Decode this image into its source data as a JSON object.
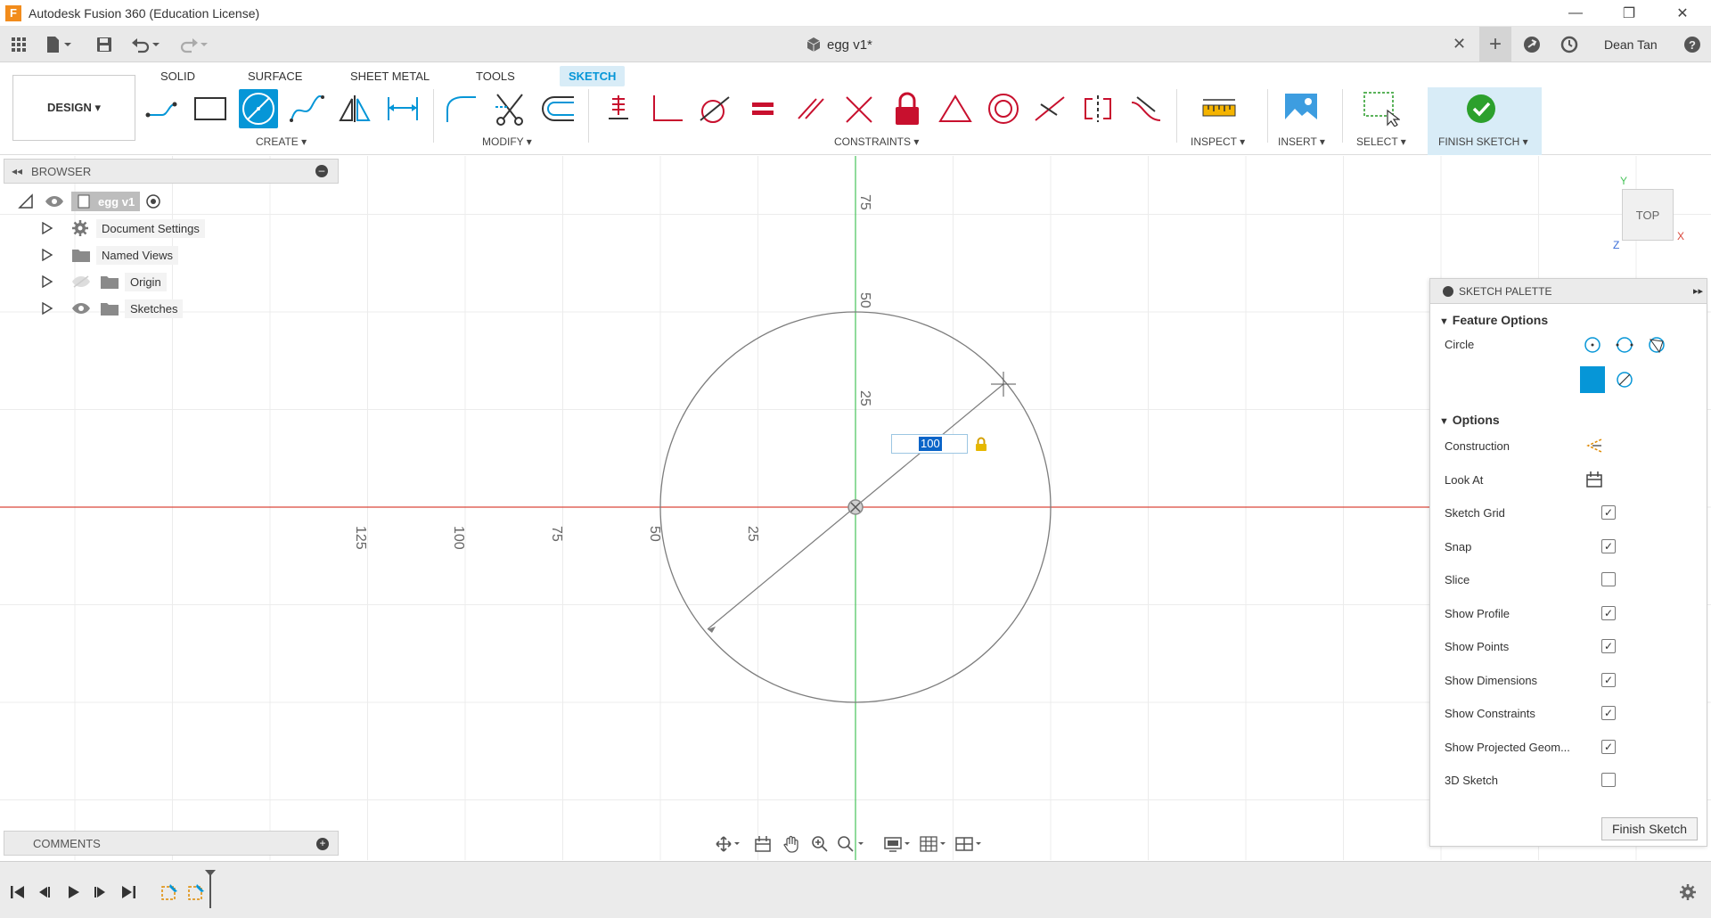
{
  "window": {
    "title": "Autodesk Fusion 360 (Education License)",
    "app_icon_letter": "F",
    "minimize_glyph": "—",
    "restore_glyph": "❐",
    "close_glyph": "✕"
  },
  "tabbar": {
    "document_title": "egg v1*",
    "close_glyph": "✕",
    "new_tab_glyph": "+",
    "user_name": "Dean Tan",
    "help_glyph": "?"
  },
  "ribbon": {
    "workspace": "DESIGN ▾",
    "tabs": [
      {
        "label": "SOLID",
        "active": false
      },
      {
        "label": "SURFACE",
        "active": false
      },
      {
        "label": "SHEET METAL",
        "active": false
      },
      {
        "label": "TOOLS",
        "active": false
      },
      {
        "label": "SKETCH",
        "active": true
      }
    ],
    "groups": {
      "create": "CREATE ▾",
      "modify": "MODIFY ▾",
      "constraints": "CONSTRAINTS ▾",
      "inspect": "INSPECT ▾",
      "insert": "INSERT ▾",
      "select": "SELECT ▾",
      "finish_sketch": "FINISH SKETCH ▾"
    },
    "accent_color": "#0696d7"
  },
  "browser": {
    "title": "BROWSER",
    "root": "egg v1",
    "items": [
      {
        "label": "Document Settings",
        "icon": "gear-icon"
      },
      {
        "label": "Named Views",
        "icon": "folder-icon"
      },
      {
        "label": "Origin",
        "icon": "folder-icon"
      },
      {
        "label": "Sketches",
        "icon": "folder-icon"
      }
    ]
  },
  "canvas": {
    "x_axis_labels": [
      "125",
      "100",
      "75",
      "50",
      "25"
    ],
    "y_axis_labels": [
      "75",
      "50",
      "25"
    ],
    "dimension_value": "100",
    "view_cube_label": "TOP",
    "axis_x_label": "X",
    "axis_y_label": "Y",
    "axis_z_label": "Z"
  },
  "sketch_palette": {
    "title": "SKETCH PALETTE",
    "feature_options_title": "Feature Options",
    "circle_label": "Circle",
    "options_title": "Options",
    "options": [
      {
        "label": "Construction",
        "type": "icon",
        "icon": "construction-icon"
      },
      {
        "label": "Look At",
        "type": "icon",
        "icon": "look-at-icon"
      },
      {
        "label": "Sketch Grid",
        "type": "check",
        "checked": true
      },
      {
        "label": "Snap",
        "type": "check",
        "checked": true
      },
      {
        "label": "Slice",
        "type": "check",
        "checked": false
      },
      {
        "label": "Show Profile",
        "type": "check",
        "checked": true
      },
      {
        "label": "Show Points",
        "type": "check",
        "checked": true
      },
      {
        "label": "Show Dimensions",
        "type": "check",
        "checked": true
      },
      {
        "label": "Show Constraints",
        "type": "check",
        "checked": true
      },
      {
        "label": "Show Projected Geom...",
        "type": "check",
        "checked": true
      },
      {
        "label": "3D Sketch",
        "type": "check",
        "checked": false
      }
    ],
    "finish_button": "Finish Sketch"
  },
  "comments": {
    "title": "COMMENTS"
  }
}
